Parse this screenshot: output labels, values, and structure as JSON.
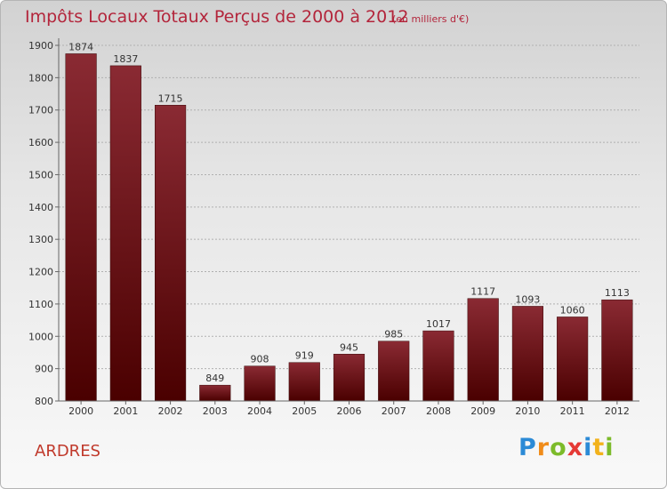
{
  "title": "Impôts Locaux Totaux Perçus de 2000 à 2012",
  "unit_note": "(en milliers d'€)",
  "commune": "ARDRES",
  "logo": {
    "letters": [
      {
        "char": "P",
        "color": "#2b8ad6"
      },
      {
        "char": "r",
        "color": "#f08c1a"
      },
      {
        "char": "o",
        "color": "#7cbb2a"
      },
      {
        "char": "x",
        "color": "#e53935"
      },
      {
        "char": "i",
        "color": "#2b8ad6"
      },
      {
        "char": "t",
        "color": "#f2b21c"
      },
      {
        "char": "i",
        "color": "#7cbb2a"
      }
    ]
  },
  "colors": {
    "bar_top": "#8a2a33",
    "bar_bottom": "#4a0000",
    "title": "#b3253b",
    "grid": "#b0b0b0"
  },
  "chart_data": {
    "type": "bar",
    "categories": [
      "2000",
      "2001",
      "2002",
      "2003",
      "2004",
      "2005",
      "2006",
      "2007",
      "2008",
      "2009",
      "2010",
      "2011",
      "2012"
    ],
    "values": [
      1874,
      1837,
      1715,
      849,
      908,
      919,
      945,
      985,
      1017,
      1117,
      1093,
      1060,
      1113
    ],
    "title": "Impôts Locaux Totaux Perçus de 2000 à 2012",
    "ylim": [
      800,
      1900
    ],
    "yticks": [
      800,
      900,
      1000,
      1100,
      1200,
      1300,
      1400,
      1500,
      1600,
      1700,
      1800,
      1900
    ],
    "grid": true,
    "data_labels": true
  }
}
